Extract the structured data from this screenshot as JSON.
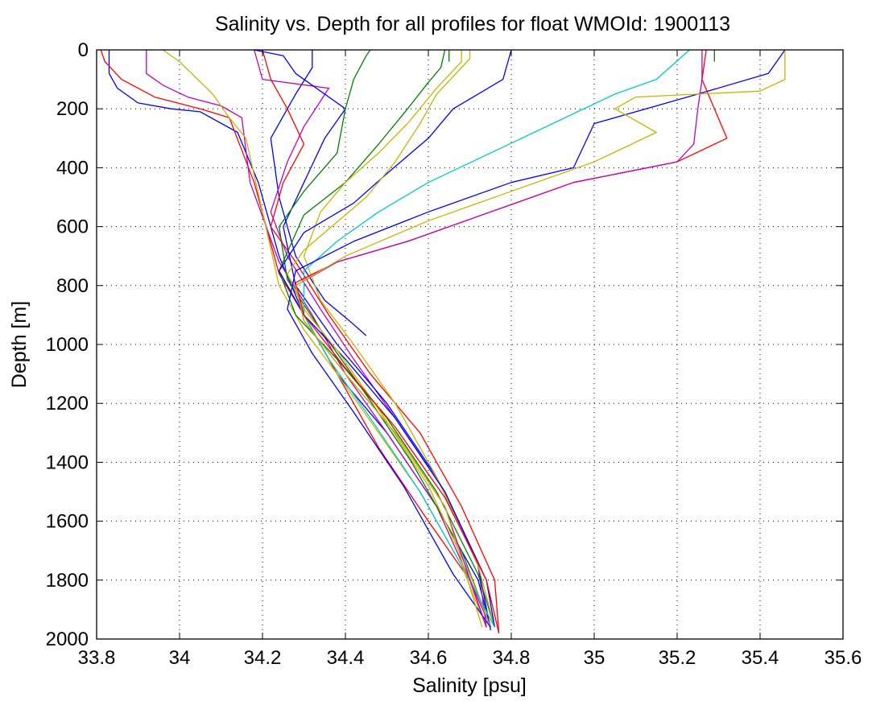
{
  "chart_data": {
    "type": "line",
    "title": "Salinity vs. Depth for all profiles for float WMOId: 1900113",
    "xlabel": "Salinity [psu]",
    "ylabel": "Depth [m]",
    "xlim": [
      33.8,
      35.6
    ],
    "ylim": [
      0,
      2000
    ],
    "y_reversed": true,
    "grid": true,
    "x_ticks": [
      "33.8",
      "34",
      "34.2",
      "34.4",
      "34.6",
      "34.8",
      "35",
      "35.2",
      "35.4",
      "35.6"
    ],
    "y_ticks": [
      "0",
      "200",
      "400",
      "600",
      "800",
      "1000",
      "1200",
      "1400",
      "1600",
      "1800",
      "2000"
    ],
    "series": [
      {
        "color": "#0000ff",
        "x": [
          33.83,
          33.83,
          33.85,
          33.9,
          33.98,
          34.05,
          34.14,
          34.19,
          34.24,
          34.3,
          34.38,
          34.5,
          34.62,
          34.72,
          34.75
        ],
        "y": [
          0,
          80,
          130,
          180,
          200,
          210,
          280,
          450,
          700,
          900,
          1100,
          1300,
          1550,
          1800,
          1960
        ]
      },
      {
        "color": "#ff0000",
        "x": [
          33.81,
          33.82,
          33.86,
          33.94,
          34.05,
          34.12,
          34.18,
          34.24,
          34.3,
          34.38,
          34.48,
          34.6,
          34.7,
          34.74
        ],
        "y": [
          0,
          40,
          100,
          160,
          200,
          230,
          450,
          760,
          900,
          1100,
          1350,
          1600,
          1800,
          1960
        ]
      },
      {
        "color": "#c000c0",
        "x": [
          33.92,
          33.92,
          33.96,
          34.02,
          34.1,
          34.15,
          34.17,
          34.24,
          34.32,
          34.4,
          34.5,
          34.62,
          34.7,
          34.75
        ],
        "y": [
          0,
          80,
          120,
          160,
          190,
          230,
          450,
          720,
          900,
          1100,
          1300,
          1550,
          1800,
          1960
        ]
      },
      {
        "color": "#c8b400",
        "x": [
          33.96,
          34.0,
          34.08,
          34.12,
          34.16,
          34.2,
          34.24,
          34.3,
          34.38,
          34.48,
          34.58,
          34.68,
          34.74
        ],
        "y": [
          0,
          40,
          150,
          230,
          300,
          550,
          800,
          950,
          1100,
          1300,
          1500,
          1750,
          1960
        ]
      },
      {
        "color": "#0000ff",
        "x": [
          34.32,
          34.32,
          34.28,
          34.22,
          34.24,
          34.28,
          34.35,
          34.41,
          34.45
        ],
        "y": [
          0,
          60,
          150,
          300,
          500,
          700,
          850,
          920,
          970
        ]
      },
      {
        "color": "#ff0000",
        "x": [
          34.2,
          34.22,
          34.26,
          34.3,
          34.25,
          34.22,
          34.28,
          34.36,
          34.46,
          34.58,
          34.68,
          34.76,
          34.77
        ],
        "y": [
          0,
          100,
          200,
          320,
          450,
          600,
          720,
          900,
          1100,
          1300,
          1550,
          1800,
          1980
        ]
      },
      {
        "color": "#c000c0",
        "x": [
          34.18,
          34.2,
          34.36,
          34.3,
          34.26,
          34.22,
          34.26,
          34.34,
          34.42,
          34.52,
          34.64,
          34.72,
          34.74
        ],
        "y": [
          0,
          100,
          130,
          260,
          380,
          550,
          700,
          880,
          1050,
          1250,
          1500,
          1750,
          1960
        ]
      },
      {
        "color": "#0000ff",
        "x": [
          34.18,
          34.25,
          34.28,
          34.4,
          34.35,
          34.3,
          34.25,
          34.28,
          34.38,
          34.5,
          34.62,
          34.72,
          34.75
        ],
        "y": [
          0,
          20,
          80,
          200,
          300,
          450,
          600,
          800,
          1000,
          1200,
          1450,
          1750,
          1970
        ]
      },
      {
        "color": "#008000",
        "x": [
          34.46,
          34.45,
          34.42,
          34.4,
          34.38,
          34.3,
          34.24,
          34.26,
          34.34,
          34.44,
          34.56,
          34.68,
          34.75
        ],
        "y": [
          0,
          20,
          100,
          200,
          350,
          480,
          600,
          780,
          950,
          1150,
          1400,
          1700,
          1960
        ]
      },
      {
        "color": "#008000",
        "x": [
          34.64,
          34.63,
          34.6,
          34.55,
          34.48,
          34.4,
          34.3,
          34.24,
          34.28,
          34.38,
          34.5,
          34.62,
          34.72,
          34.76
        ],
        "y": [
          0,
          60,
          110,
          200,
          320,
          450,
          560,
          750,
          900,
          1050,
          1250,
          1500,
          1780,
          1960
        ]
      },
      {
        "color": "#c8b400",
        "x": [
          34.68,
          34.68,
          34.62,
          34.55,
          34.48,
          34.4,
          34.34,
          34.3,
          34.34,
          34.42,
          34.52,
          34.62,
          34.72,
          34.76
        ],
        "y": [
          0,
          40,
          130,
          250,
          350,
          450,
          550,
          700,
          850,
          1000,
          1200,
          1450,
          1750,
          1960
        ]
      },
      {
        "color": "#0000ff",
        "x": [
          34.8,
          34.78,
          34.72,
          34.66,
          34.6,
          34.5,
          34.42,
          34.3,
          34.24,
          34.3,
          34.4,
          34.52,
          34.64,
          34.74,
          34.76
        ],
        "y": [
          0,
          100,
          150,
          200,
          300,
          420,
          520,
          620,
          750,
          900,
          1050,
          1250,
          1500,
          1800,
          1960
        ]
      },
      {
        "color": "#c8b400",
        "x": [
          34.7,
          34.7,
          34.62,
          34.58,
          34.52,
          34.45,
          34.3,
          34.26,
          34.3,
          34.38,
          34.48,
          34.6,
          34.7,
          34.75
        ],
        "y": [
          0,
          30,
          150,
          250,
          380,
          500,
          680,
          760,
          880,
          1020,
          1220,
          1480,
          1780,
          1960
        ]
      },
      {
        "color": "#00c8c8",
        "x": [
          35.23,
          35.15,
          35.05,
          34.9,
          34.75,
          34.6,
          34.48,
          34.38,
          34.3,
          34.3,
          34.36,
          34.46,
          34.58,
          34.7,
          34.76
        ],
        "y": [
          0,
          100,
          150,
          250,
          350,
          450,
          550,
          650,
          750,
          900,
          1050,
          1250,
          1500,
          1800,
          1960
        ]
      },
      {
        "color": "#0000ff",
        "x": [
          35.46,
          35.42,
          35.25,
          35.0,
          34.95,
          34.8,
          34.6,
          34.42,
          34.28,
          34.26,
          34.32,
          34.42,
          34.54,
          34.66,
          34.75
        ],
        "y": [
          0,
          80,
          150,
          250,
          400,
          450,
          550,
          650,
          750,
          880,
          1030,
          1230,
          1480,
          1780,
          1960
        ]
      },
      {
        "color": "#ff0000",
        "x": [
          35.27,
          35.26,
          35.29,
          35.32,
          35.2,
          34.95,
          34.75,
          34.55,
          34.38,
          34.28,
          34.3,
          34.4,
          34.52,
          34.64,
          34.74,
          34.77
        ],
        "y": [
          0,
          100,
          200,
          300,
          380,
          450,
          550,
          650,
          720,
          790,
          900,
          1080,
          1280,
          1520,
          1800,
          1980
        ]
      },
      {
        "color": "#c000c0",
        "x": [
          35.26,
          35.26,
          35.25,
          35.24,
          35.2,
          34.95,
          34.75,
          34.55,
          34.38,
          34.28,
          34.3,
          34.4,
          34.52,
          34.64,
          34.74
        ],
        "y": [
          0,
          100,
          200,
          320,
          380,
          450,
          550,
          650,
          720,
          800,
          920,
          1100,
          1300,
          1550,
          1960
        ]
      },
      {
        "color": "#c8b400",
        "x": [
          35.46,
          35.46,
          35.4,
          35.1,
          35.05,
          35.15,
          35.0,
          34.8,
          34.6,
          34.4,
          34.28,
          34.3,
          34.4,
          34.52,
          34.64,
          34.73
        ],
        "y": [
          0,
          100,
          140,
          160,
          200,
          280,
          380,
          480,
          580,
          700,
          800,
          920,
          1100,
          1300,
          1550,
          1960
        ]
      },
      {
        "color": "#008000",
        "x": [
          35.29,
          35.29
        ],
        "y": [
          0,
          40
        ]
      },
      {
        "color": "#008000",
        "x": [
          34.65,
          34.65
        ],
        "y": [
          0,
          40
        ]
      }
    ]
  }
}
